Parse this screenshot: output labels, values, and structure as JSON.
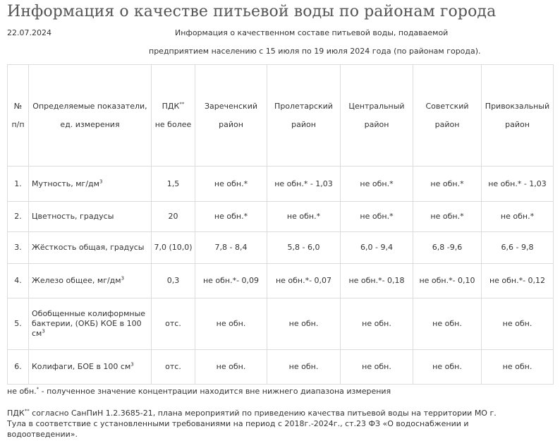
{
  "page": {
    "title": "Информация о качестве питьевой воды по районам города",
    "date": "22.07.2024",
    "intro_line1": "Информация о качественном составе питьевой воды, подаваемой",
    "intro_line2": "предприятием населению с 15 июля по 19 июля 2024 года (по районам города)."
  },
  "table": {
    "header": {
      "num_line1": "№",
      "num_line2": "п/п",
      "param_line1": "Определяемые показатели,",
      "param_line2": "ед. измерения",
      "pdk_label": "ПДК",
      "pdk_sup": "**",
      "pdk_line2": "не более",
      "districts": [
        {
          "line1": "Зареченский",
          "line2": "район"
        },
        {
          "line1": "Пролетарский",
          "line2": "район"
        },
        {
          "line1": "Центральный",
          "line2": "район"
        },
        {
          "line1": "Советский",
          "line2": "район"
        },
        {
          "line1": "Привокзальный",
          "line2": "район"
        }
      ]
    },
    "rows": [
      {
        "num": "1.",
        "param": "Мутность,  мг/дм",
        "param_sup": "3",
        "pdk": "1,5",
        "values": [
          "не обн.*",
          "не обн.* - 1,03",
          "не обн.*",
          "не обн.*",
          "не обн.* - 1,03"
        ]
      },
      {
        "num": "2.",
        "param": "Цветность, градусы",
        "pdk": "20",
        "values": [
          "не обн.*",
          "не обн.*",
          "не обн.*",
          "не обн.*",
          "не обн.*"
        ]
      },
      {
        "num": "3.",
        "param": "Жёсткость общая,  градусы",
        "pdk": "7,0 (10,0)",
        "values": [
          "7,8 - 8,4",
          "5,8 - 6,0",
          "6,0 - 9,4",
          "6,8 -9,6",
          "6,6 - 9,8"
        ]
      },
      {
        "num": "4.",
        "param": "Железо общее, мг/дм",
        "param_sup": "3",
        "pdk": "0,3",
        "values": [
          "не обн.*- 0,09",
          "не обн.*- 0,07",
          "не обн.*- 0,18",
          "не обн.*- 0,10",
          "не обн.*- 0,12"
        ]
      },
      {
        "num": "5.",
        "param_line1": "Обобщенные колиформные",
        "param_line2": "бактерии, (ОКБ) КОЕ в 100",
        "param_line3": "см",
        "param_sup": "3",
        "pdk": "отс.",
        "values": [
          "не обн.",
          "не обн.",
          "не обн.",
          "не обн.",
          "не обн."
        ]
      },
      {
        "num": "6.",
        "param": "Колифаги, БОЕ в 100 см",
        "param_sup": "3",
        "pdk": "отс.",
        "values": [
          "не обн.",
          "не обн.",
          "не обн.",
          "не обн.",
          "не обн."
        ]
      }
    ]
  },
  "footnotes": {
    "note1_start": "не обн.",
    "note1_sup": "*",
    "note1_rest": " - полученное значение концентрации находится вне нижнего диапазона измерения",
    "note2_start": "ПДК",
    "note2_sup": "**",
    "note2_rest": " согласно СанПиН 1.2.3685-21, плана мероприятий по приведению качества питьевой воды на территории МО г. Тула в соответствие с установленными требованиями на период с 2018г.-2024г., ст.23 ФЗ «О водоснабжении и водоотведении»."
  }
}
